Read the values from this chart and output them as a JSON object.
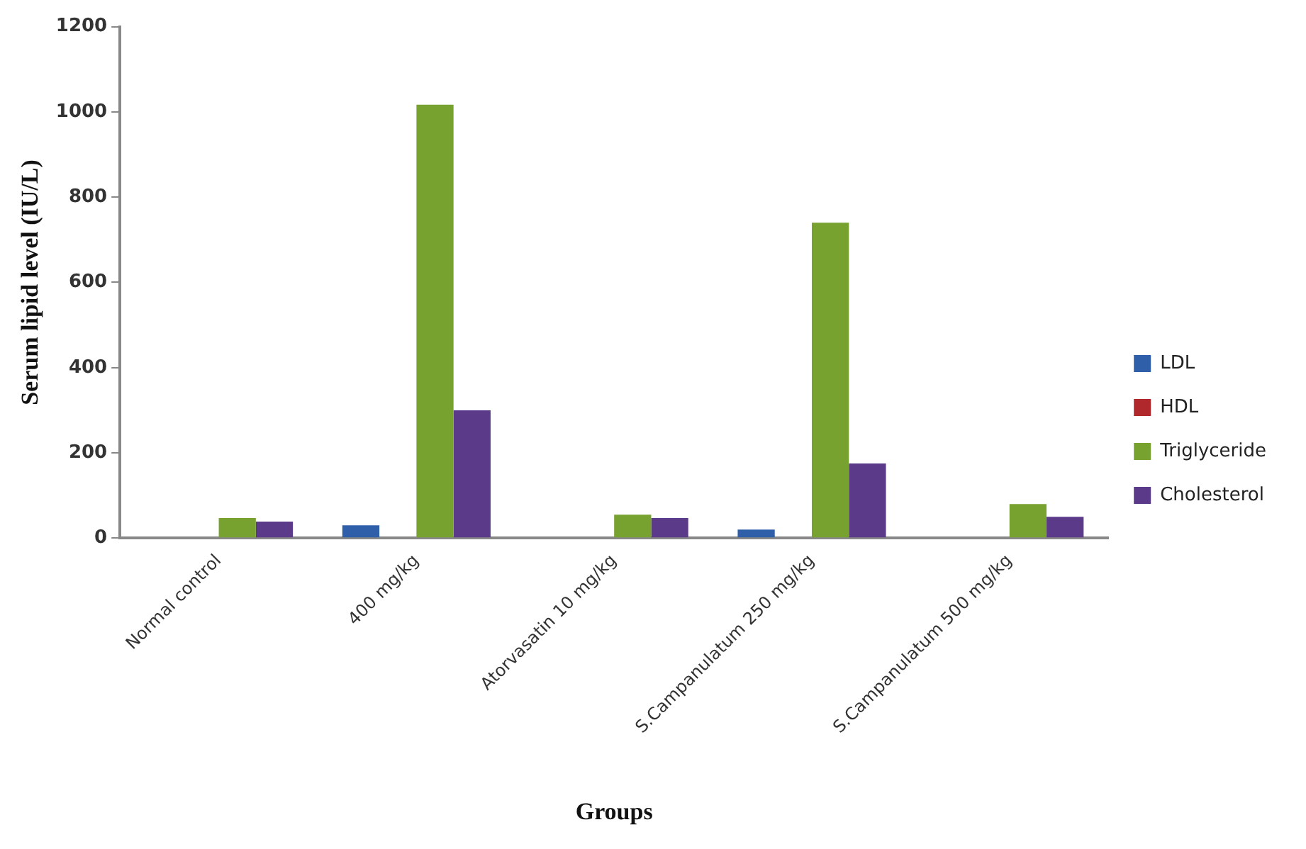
{
  "chart_data": {
    "type": "bar",
    "xlabel": "Groups",
    "ylabel": "Serum lipid level (IU/L)",
    "categories": [
      "Normal control",
      "400 mg/kg",
      "Atorvasatin 10 mg/kg",
      "S.Campanulatum 250 mg/kg",
      "S.Campanulatum 500 mg/kg"
    ],
    "series": [
      {
        "name": "LDL",
        "color": "#2e5fa8",
        "values": [
          0,
          30,
          0,
          20,
          0
        ]
      },
      {
        "name": "HDL",
        "color": "#b0282c",
        "values": [
          0,
          0,
          0,
          0,
          0
        ]
      },
      {
        "name": "Triglyceride",
        "color": "#78a22f",
        "values": [
          47,
          1017,
          55,
          740,
          80
        ]
      },
      {
        "name": "Cholesterol",
        "color": "#5b3a8a",
        "values": [
          39,
          300,
          47,
          175,
          50
        ]
      }
    ],
    "ylim": [
      0,
      1200
    ],
    "yticks": [
      0,
      200,
      400,
      600,
      800,
      1000,
      1200
    ],
    "grid": false,
    "legend": "right"
  }
}
